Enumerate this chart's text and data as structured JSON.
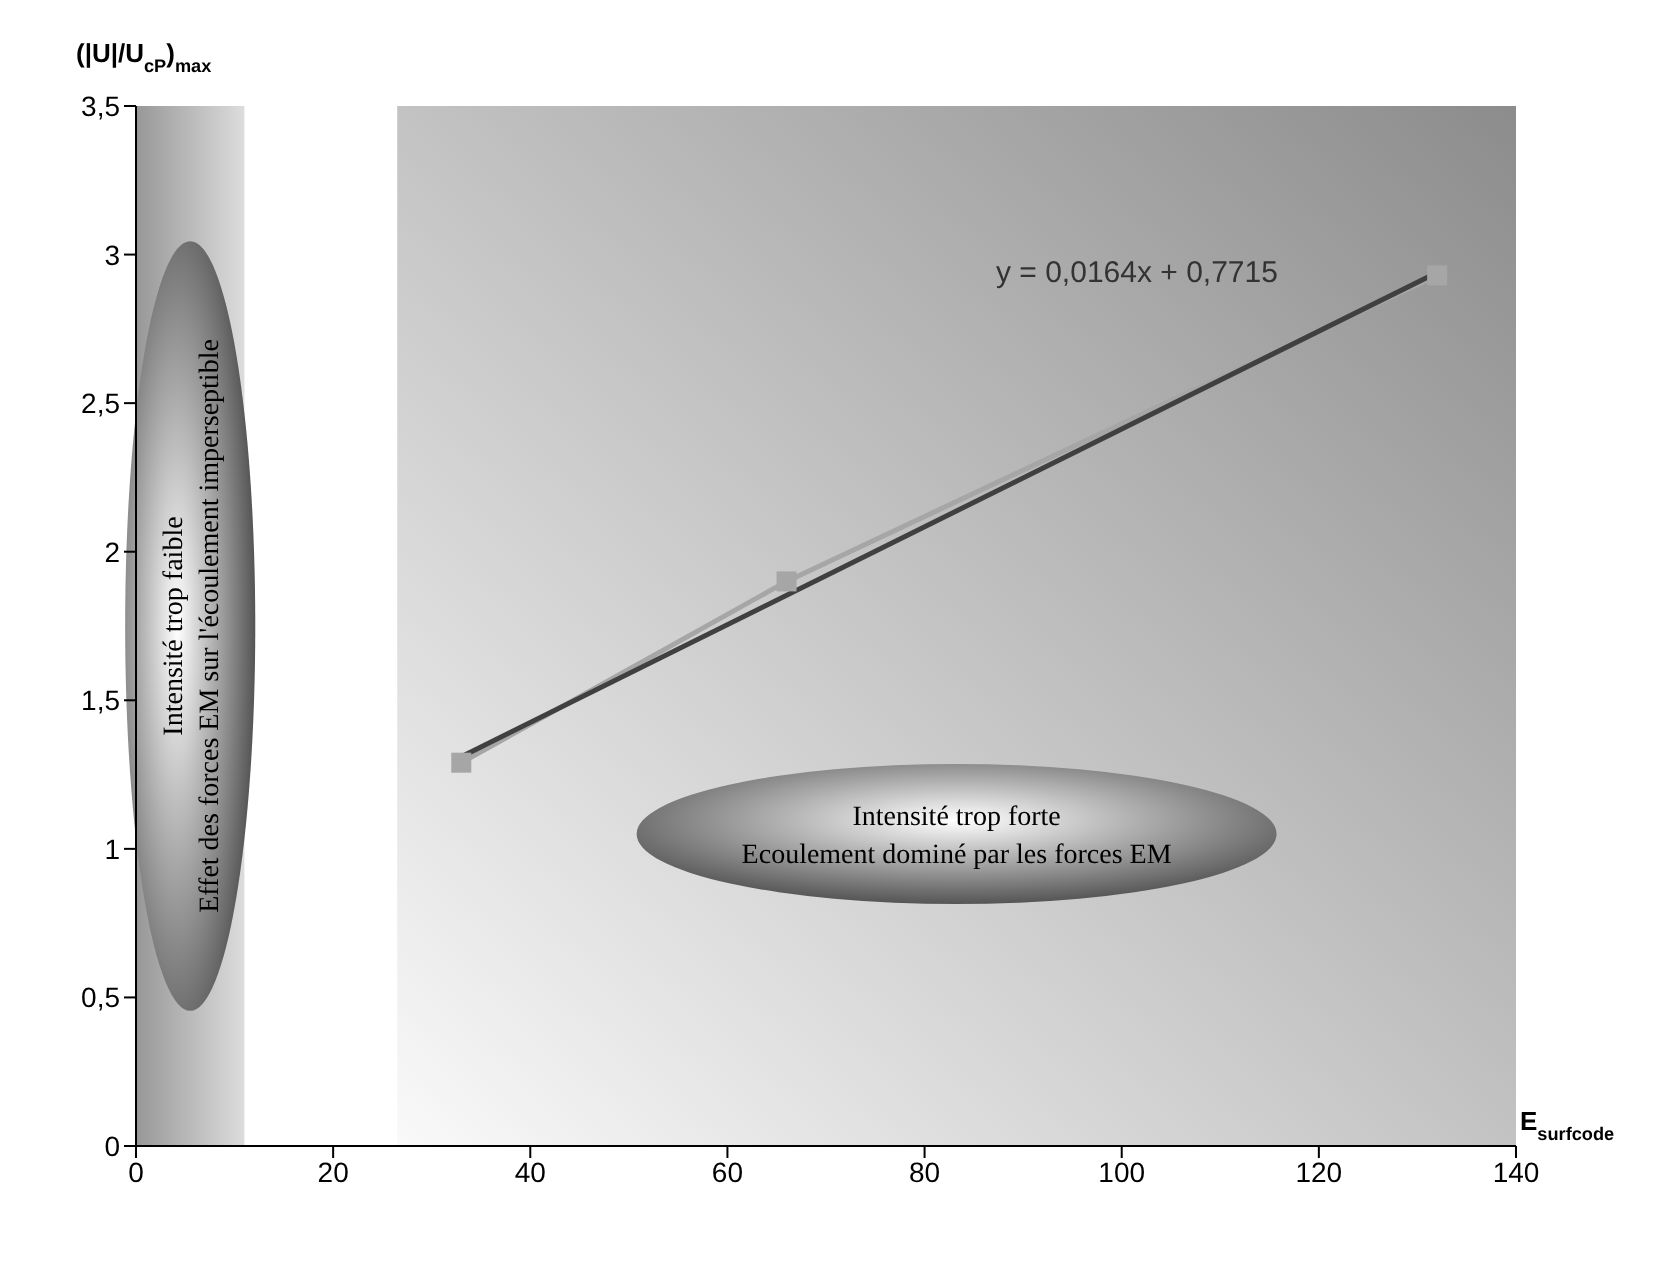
{
  "chart_data": {
    "type": "line",
    "xlabel": "E$_{surfcode}$",
    "ylabel": "(|U|/U$_{cP}$)$_{max}$",
    "xlim": [
      0,
      140
    ],
    "xticks": [
      0,
      20,
      40,
      60,
      80,
      100,
      120,
      140
    ],
    "ylim": [
      0,
      3.5
    ],
    "yticks": [
      0,
      {
        "value": 0.5,
        "label": "0,5"
      },
      1,
      {
        "value": 1.5,
        "label": "1,5"
      },
      2,
      {
        "value": 2.5,
        "label": "2,5"
      },
      3,
      {
        "value": 3.5,
        "label": "3,5"
      }
    ],
    "series": [
      {
        "type": "line",
        "color": "#a6a6a6",
        "marker": "square",
        "x": [
          33,
          66,
          132
        ],
        "values": [
          1.29,
          1.9,
          2.93
        ]
      },
      {
        "type": "line",
        "color": "#404040",
        "marker": "none",
        "x": [
          33,
          132
        ],
        "values": [
          1.31,
          2.94
        ]
      }
    ],
    "bands": [
      {
        "axis": "x",
        "from": 0,
        "to": 11,
        "color": "#8c8c8c",
        "label": "Intensité trop faible\nEffet des forces EM sur l'écoulement imperseptible"
      },
      {
        "axis": "x",
        "from": 26.5,
        "to": 140,
        "color": "#8c8c8c",
        "label": "Intensité trop forte\nEcoulement dominé par les forces EM"
      }
    ],
    "annotations": [
      "y = 0,0164x + 0,7715"
    ],
    "grid": false
  }
}
